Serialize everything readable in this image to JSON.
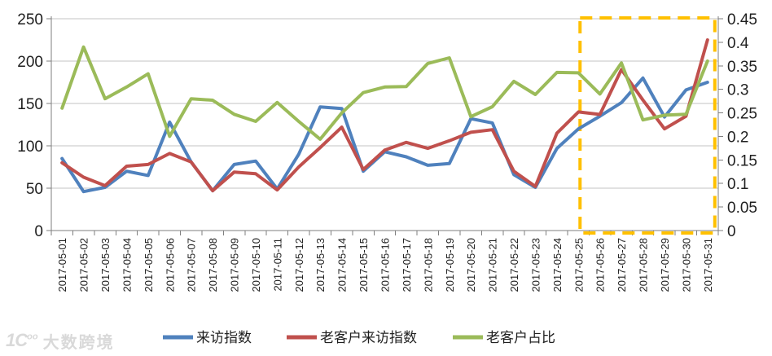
{
  "chart_data": {
    "type": "line",
    "title": "",
    "x": [
      "2017-05-01",
      "2017-05-02",
      "2017-05-03",
      "2017-05-04",
      "2017-05-05",
      "2017-05-06",
      "2017-05-07",
      "2017-05-08",
      "2017-05-09",
      "2017-05-10",
      "2017-05-11",
      "2017-05-12",
      "2017-05-13",
      "2017-05-14",
      "2017-05-15",
      "2017-05-16",
      "2017-05-17",
      "2017-05-18",
      "2017-05-19",
      "2017-05-20",
      "2017-05-21",
      "2017-05-22",
      "2017-05-23",
      "2017-05-24",
      "2017-05-25",
      "2017-05-26",
      "2017-05-27",
      "2017-05-28",
      "2017-05-29",
      "2017-05-30",
      "2017-05-31"
    ],
    "series": [
      {
        "name": "来访指数",
        "axis": "left",
        "color": "#4F81BD",
        "values": [
          85,
          46,
          51,
          70,
          65,
          128,
          81,
          47,
          78,
          82,
          49,
          90,
          146,
          144,
          70,
          93,
          87,
          77,
          79,
          132,
          127,
          66,
          51,
          97,
          120,
          135,
          151,
          180,
          134,
          166,
          175
        ]
      },
      {
        "name": "老客户来访指数",
        "axis": "left",
        "color": "#C0504D",
        "values": [
          80,
          63,
          53,
          76,
          78,
          91,
          81,
          47,
          69,
          67,
          48,
          75,
          98,
          122,
          72,
          95,
          104,
          97,
          106,
          116,
          119,
          70,
          52,
          115,
          140,
          137,
          190,
          154,
          120,
          135,
          225
        ]
      },
      {
        "name": "老客户占比",
        "axis": "right",
        "color": "#9BBB59",
        "values": [
          0.26,
          0.39,
          0.28,
          0.305,
          0.333,
          0.2,
          0.28,
          0.277,
          0.247,
          0.232,
          0.272,
          0.232,
          0.194,
          0.25,
          0.293,
          0.305,
          0.306,
          0.355,
          0.367,
          0.242,
          0.263,
          0.317,
          0.289,
          0.336,
          0.335,
          0.29,
          0.356,
          0.235,
          0.245,
          0.247,
          0.36
        ]
      }
    ],
    "left_axis": {
      "min": 0,
      "max": 250,
      "step": 50,
      "labels": [
        "0",
        "50",
        "100",
        "150",
        "200",
        "250"
      ]
    },
    "right_axis": {
      "min": 0,
      "max": 0.45,
      "step": 0.05,
      "labels": [
        "0",
        "0.05",
        "0.1",
        "0.15",
        "0.2",
        "0.25",
        "0.3",
        "0.35",
        "0.4",
        "0.45"
      ]
    },
    "grid": true,
    "legend_position": "bottom",
    "highlight_box": {
      "start_date": "2017-05-25",
      "end_date": "2017-05-31",
      "color": "#FFC000"
    }
  },
  "legend": {
    "items": [
      {
        "label": "来访指数",
        "color": "#4F81BD"
      },
      {
        "label": "老客户来访指数",
        "color": "#C0504D"
      },
      {
        "label": "老客户占比",
        "color": "#9BBB59"
      }
    ]
  },
  "watermark": {
    "logo": "1C",
    "logo_sup": "oo",
    "text": "大数跨境"
  },
  "colors": {
    "grid": "#c3c3c3",
    "axis": "#7f7f7f",
    "tick": "#7f7f7f",
    "label": "#1f1f1f",
    "highlight": "#FFC000",
    "background": "#ffffff",
    "watermark": "#d9d9d9"
  }
}
